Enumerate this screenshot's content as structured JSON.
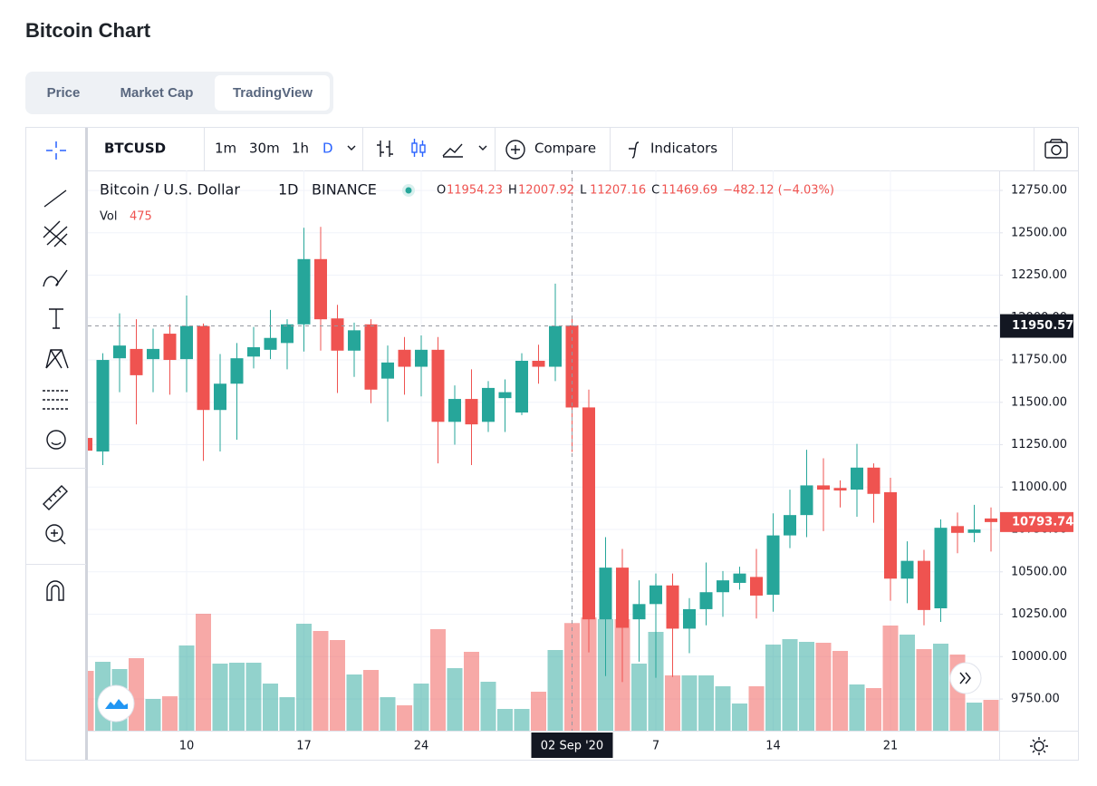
{
  "header": {
    "title": "Bitcoin Chart"
  },
  "tabs": [
    "Price",
    "Market Cap",
    "TradingView"
  ],
  "toolbar": {
    "symbol": "BTCUSD",
    "intervals": [
      "1m",
      "30m",
      "1h",
      "D"
    ],
    "compare": "Compare",
    "indicators": "Indicators"
  },
  "chart_data": {
    "type": "candlestick",
    "title": "Bitcoin / U.S. Dollar",
    "interval": "1D",
    "exchange": "BINANCE",
    "ohlc_prefixes": [
      "O",
      "H",
      "L",
      "C"
    ],
    "change": "−482.12 (−4.03%)",
    "volume_label": "Vol",
    "up_color": "#26a69a",
    "down_color": "#ef5350",
    "categories": [
      null,
      null,
      null,
      null,
      null,
      null,
      "10",
      null,
      null,
      null,
      null,
      null,
      null,
      "17",
      null,
      null,
      null,
      null,
      null,
      null,
      "24",
      null,
      null,
      null,
      null,
      null,
      null,
      null,
      null,
      "02 Sep '20",
      null,
      null,
      null,
      null,
      "7",
      null,
      null,
      null,
      null,
      null,
      null,
      "14",
      null,
      null,
      null,
      null,
      null,
      null,
      "21",
      null,
      null,
      null,
      null,
      null,
      null
    ],
    "open": [
      11290,
      11210,
      11760,
      11815,
      11755,
      11905,
      11755,
      11950,
      11455,
      11610,
      11770,
      11810,
      11850,
      11960,
      12345,
      11995,
      11805,
      11960,
      11640,
      11810,
      11710,
      11810,
      11385,
      11520,
      11385,
      11525,
      11440,
      11745,
      11710,
      11954.23,
      11470,
      10220,
      10525,
      10220,
      10310,
      10420,
      10165,
      10280,
      10380,
      10435,
      10470,
      10365,
      10715,
      10835,
      11010,
      10995,
      10985,
      11115,
      10970,
      10460,
      10565,
      10285,
      10770,
      10730,
      10815
    ],
    "high": [
      11420,
      11790,
      12025,
      11990,
      11935,
      11960,
      12130,
      11965,
      11785,
      11850,
      11945,
      12045,
      11990,
      12530,
      12535,
      12075,
      11970,
      11990,
      11835,
      11885,
      11895,
      11885,
      11600,
      11695,
      11625,
      11635,
      11790,
      11840,
      12200,
      12007.92,
      11575,
      10705,
      10635,
      10450,
      10490,
      10490,
      10345,
      10555,
      10505,
      10530,
      10635,
      10845,
      10985,
      11220,
      11170,
      11040,
      11255,
      11140,
      11055,
      10680,
      10630,
      10810,
      10850,
      10895,
      10880
    ],
    "low": [
      11000,
      11130,
      11560,
      11370,
      11560,
      11545,
      11560,
      11155,
      11210,
      11280,
      11700,
      11755,
      11695,
      11800,
      11805,
      11555,
      11650,
      11495,
      11385,
      11545,
      11535,
      11140,
      11250,
      11130,
      11325,
      11325,
      11425,
      11610,
      11625,
      11207.16,
      10025,
      9885,
      9850,
      9970,
      9875,
      9880,
      10020,
      10185,
      10235,
      10395,
      10225,
      10265,
      10640,
      10705,
      10740,
      10880,
      10825,
      10790,
      10330,
      10315,
      10185,
      10205,
      10610,
      10675,
      10620
    ],
    "close": [
      11215,
      11750,
      11835,
      11660,
      11815,
      11750,
      11950,
      11455,
      11610,
      11760,
      11825,
      11880,
      11960,
      12345,
      11990,
      11805,
      11925,
      11575,
      11735,
      11710,
      11810,
      11385,
      11520,
      11370,
      11585,
      11560,
      11745,
      11710,
      11950,
      11469.69,
      10220,
      10525,
      10170,
      10310,
      10420,
      10165,
      10280,
      10380,
      10450,
      10490,
      10360,
      10715,
      10835,
      11010,
      10985,
      10980,
      11115,
      10960,
      10460,
      10565,
      10275,
      10760,
      10730,
      10750,
      10793.74
    ],
    "volume": [
      264,
      304,
      272,
      320,
      140,
      152,
      376,
      516,
      296,
      300,
      300,
      208,
      148,
      472,
      440,
      400,
      248,
      268,
      148,
      112,
      208,
      448,
      276,
      348,
      216,
      96,
      96,
      172,
      356,
      475,
      500,
      492,
      492,
      296,
      436,
      244,
      244,
      244,
      196,
      120,
      196,
      380,
      404,
      392,
      388,
      352,
      204,
      188,
      464,
      424,
      360,
      384,
      336,
      124,
      136
    ],
    "ylim": [
      9563,
      12868
    ],
    "yticks": [
      {
        "value": 9750,
        "label": "9750.00"
      },
      {
        "value": 10000,
        "label": "10000.00"
      },
      {
        "value": 10250,
        "label": "10250.00"
      },
      {
        "value": 10500,
        "label": "10500.00"
      },
      {
        "value": 10750,
        "label": "10750.00"
      },
      {
        "value": 11000,
        "label": "11000.00"
      },
      {
        "value": 11250,
        "label": "11250.00"
      },
      {
        "value": 11500,
        "label": "11500.00"
      },
      {
        "value": 11750,
        "label": "11750.00"
      },
      {
        "value": 12000,
        "label": "12000.00"
      },
      {
        "value": 12250,
        "label": "12250.00"
      },
      {
        "value": 12500,
        "label": "12500.00"
      },
      {
        "value": 12750,
        "label": "12750.00"
      }
    ],
    "crosshair_price": 11950.57,
    "grid": true
  }
}
